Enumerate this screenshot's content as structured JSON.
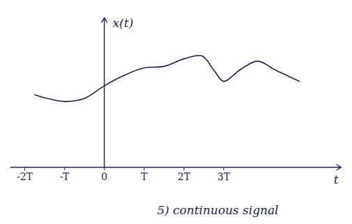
{
  "chart_data": {
    "type": "line",
    "caption": "5) continuous signal",
    "x_label": "t",
    "y_label": "x(t)",
    "x": [
      -1.75,
      -1.5,
      -1.0,
      -0.5,
      0,
      0.5,
      1.0,
      1.5,
      2.0,
      2.45,
      2.75,
      3.0,
      3.4,
      3.85,
      4.3,
      4.9
    ],
    "values": [
      1.94,
      1.86,
      1.76,
      1.84,
      2.18,
      2.46,
      2.66,
      2.7,
      2.9,
      2.98,
      2.6,
      2.3,
      2.6,
      2.84,
      2.6,
      2.3
    ],
    "xlim": [
      -2.35,
      5.95
    ],
    "ylim": [
      0,
      4
    ],
    "xticks": [
      {
        "value": -2,
        "label": "-2T"
      },
      {
        "value": -1,
        "label": "-T"
      },
      0,
      {
        "value": 1,
        "label": "T"
      },
      {
        "value": 2,
        "label": "2T"
      },
      {
        "value": 3,
        "label": "3T"
      }
    ],
    "tick_labels": "x",
    "color": "#1c1f4a",
    "line_style": "solid"
  }
}
